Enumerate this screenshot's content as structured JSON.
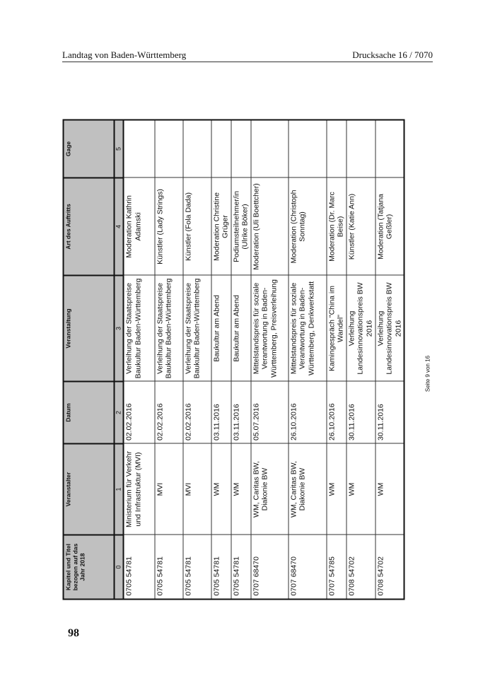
{
  "header": {
    "left": "Landtag von Baden-Württemberg",
    "right": "Drucksache 16 / 7070"
  },
  "page_number": "98",
  "footer": {
    "seite": "Seite 9 von 16"
  },
  "table": {
    "columns": [
      "Kapitel und Titel bezogen auf das Jahr 2018",
      "Veranstalter",
      "Datum",
      "Veranstaltung",
      "Art des Auftritts",
      "Gage"
    ],
    "column_numbers": [
      "0",
      "1",
      "2",
      "3",
      "4",
      "5"
    ],
    "rows": [
      [
        "0705 54781",
        "Ministerium für Verkehr und Infrastruktur (MVI)",
        "02.02.2016",
        "Verleihung der Staatspreise Baukultur Baden-Württemberg",
        "Moderation Kathrin Adamski",
        ""
      ],
      [
        "0705 54781",
        "MVI",
        "02.02.2016",
        "Verleihung der Staatspreise Baukultur Baden-Württemberg",
        "Künstler (Lady Strings)",
        ""
      ],
      [
        "0705 54781",
        "MVI",
        "02.02.2016",
        "Verleihung der Staatspreise Baukultur Baden-Württemberg",
        "Künstler (Fola Dada)",
        ""
      ],
      [
        "0705 54781",
        "WM",
        "03.11.2016",
        "Baukultur am Abend",
        "Moderation Christine Grüger",
        ""
      ],
      [
        "0705 54781",
        "WM",
        "03.11.2016",
        "Baukultur am Abend",
        "Podiumsteilnehmer/in (Ulrike Böker)",
        ""
      ],
      [
        "0707 68470",
        "WM, Caritas BW, Diakonie BW",
        "05.07.2016",
        "Mittelstandspreis für soziale Verantwortung in Baden-Württemberg, Preisverleihung",
        "Moderation (Uli Boettcher)",
        ""
      ],
      [
        "0707 68470",
        "WM, Caritas BW, Diakonie BW",
        "26.10.2016",
        "Mittelstandspreis für soziale Verantwortung in Baden-Württemberg, Denkwerkstatt",
        "Moderation (Christoph Sonntag)",
        ""
      ],
      [
        "0707 54785",
        "WM",
        "26.10.2016",
        "Kamingespräch \"China im Wandel\"",
        "Moderation (Dr. Marc Beise)",
        ""
      ],
      [
        "0708 54702",
        "WM",
        "30.11.2016",
        "Verleihung Landesinnovationspreis BW 2016",
        "Künstler (Katie Ann)",
        ""
      ],
      [
        "0708 54702",
        "WM",
        "30.11.2016",
        "Verleihung Landesinnovationspreis BW 2016",
        "Moderation (Tatjana Geßler)",
        ""
      ]
    ]
  }
}
